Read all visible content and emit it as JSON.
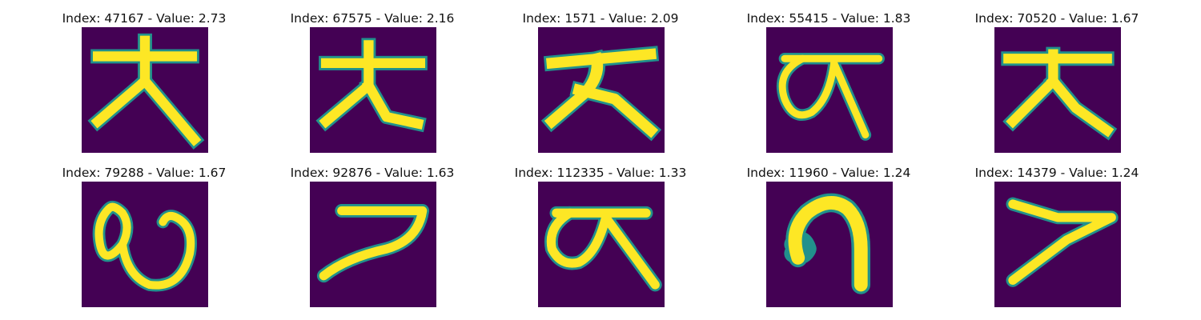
{
  "colors": {
    "background": "#440154",
    "stroke_core": "#fde725",
    "stroke_edge": "#21918c",
    "stroke_mid": "#5ec962"
  },
  "panels": [
    {
      "title": "Index: 47167 - Value: 2.73",
      "glyph": "kanji-like-character"
    },
    {
      "title": "Index: 67575 - Value: 2.16",
      "glyph": "kanji-like-character"
    },
    {
      "title": "Index: 1571 - Value: 2.09",
      "glyph": "kanji-like-character"
    },
    {
      "title": "Index: 55415 - Value: 1.83",
      "glyph": "looped-character"
    },
    {
      "title": "Index: 70520 - Value: 1.67",
      "glyph": "kanji-like-character"
    },
    {
      "title": "Index: 79288 - Value: 1.67",
      "glyph": "looped-character"
    },
    {
      "title": "Index: 92876 - Value: 1.63",
      "glyph": "hook-character"
    },
    {
      "title": "Index: 112335 - Value: 1.33",
      "glyph": "looped-character"
    },
    {
      "title": "Index: 11960 - Value: 1.24",
      "glyph": "hook-character"
    },
    {
      "title": "Index: 14379 - Value: 1.24",
      "glyph": "slanted-character"
    }
  ]
}
